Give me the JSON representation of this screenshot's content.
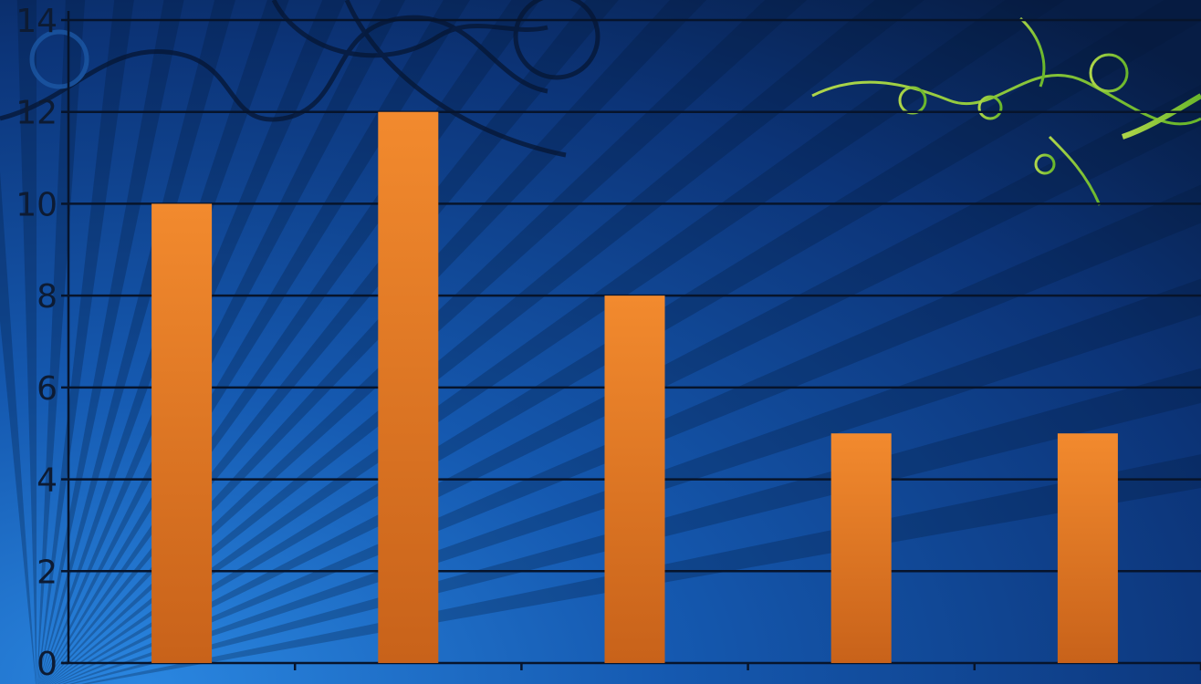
{
  "chart_data": {
    "type": "bar",
    "categories": [
      "",
      "",
      "",
      "",
      ""
    ],
    "values": [
      10,
      12,
      8,
      5,
      5
    ],
    "ylim": [
      0,
      14
    ],
    "yticks": [
      0,
      2,
      4,
      6,
      8,
      10,
      12,
      14
    ],
    "title": "",
    "xlabel": "",
    "ylabel": "",
    "grid": true,
    "bar_color_top": "#f28a2e",
    "bar_color_bottom": "#c8621a",
    "grid_color": "#07142b",
    "background_colors": [
      "#0a1f45",
      "#1560b8"
    ]
  }
}
